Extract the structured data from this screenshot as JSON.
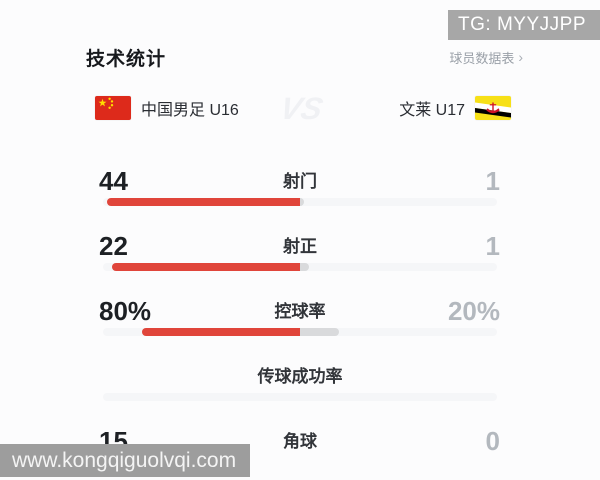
{
  "watermark_top": {
    "text": "TG: MYYJJPP"
  },
  "watermark_bottom": {
    "text": "www.kongqiguolvqi.com"
  },
  "header": {
    "title": "技术统计",
    "link_label": "球员数据表",
    "link_chevron": "›"
  },
  "teams": {
    "home_name": "中国男足 U16",
    "away_name": "文莱 U17",
    "vs_label": "VS",
    "home_flag": "china-flag",
    "away_flag": "brunei-flag"
  },
  "colors": {
    "home_bar": "#e0453b",
    "away_bar": "#d9dadc",
    "bar_track": "#f5f6f8",
    "home_value_text": "#1d2024",
    "away_value_text": "#b3b8be",
    "watermark_bg": "#a7a7a7"
  },
  "stats": [
    {
      "label": "射门",
      "home": "44",
      "away": "1",
      "home_num": 44,
      "away_num": 1,
      "show_bar": true,
      "track_only": false
    },
    {
      "label": "射正",
      "home": "22",
      "away": "1",
      "home_num": 22,
      "away_num": 1,
      "show_bar": true,
      "track_only": false
    },
    {
      "label": "控球率",
      "home": "80%",
      "away": "20%",
      "home_num": 80,
      "away_num": 20,
      "show_bar": true,
      "track_only": false
    },
    {
      "label": "传球成功率",
      "home": "",
      "away": "",
      "home_num": null,
      "away_num": null,
      "show_bar": true,
      "track_only": true
    },
    {
      "label": "角球",
      "home": "15",
      "away": "0",
      "home_num": 15,
      "away_num": 0,
      "show_bar": false,
      "track_only": false
    }
  ],
  "chart_data": {
    "type": "bar",
    "orientation": "horizontal",
    "title": "技术统计",
    "categories": [
      "射门",
      "射正",
      "控球率",
      "传球成功率",
      "角球"
    ],
    "series": [
      {
        "name": "中国男足 U16",
        "values": [
          44,
          22,
          80,
          null,
          15
        ]
      },
      {
        "name": "文莱 U17",
        "values": [
          1,
          1,
          20,
          null,
          0
        ]
      }
    ],
    "value_units": [
      "count",
      "count",
      "percent",
      "percent",
      "count"
    ],
    "legend_position": "top"
  }
}
